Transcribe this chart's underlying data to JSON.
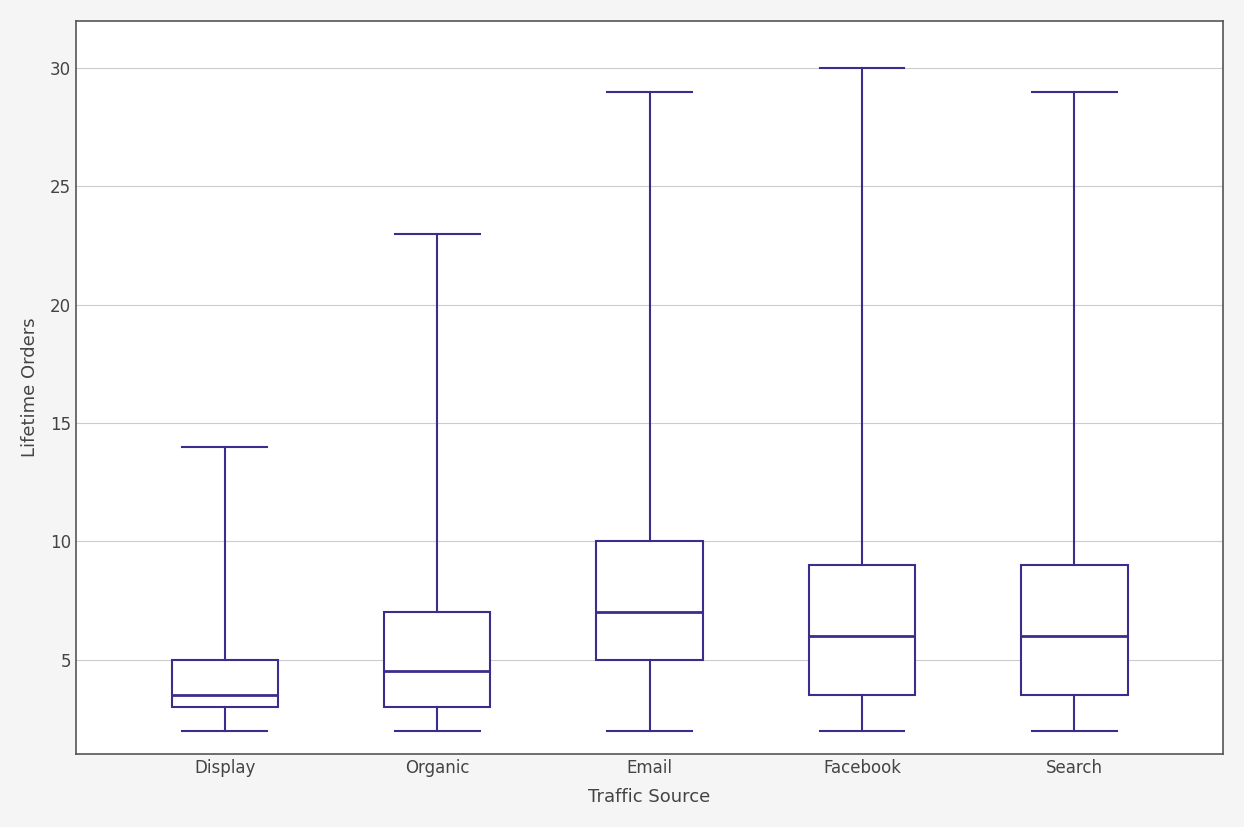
{
  "categories": [
    "Display",
    "Organic",
    "Email",
    "Facebook",
    "Search"
  ],
  "xlabel": "Traffic Source",
  "ylabel": "Lifetime Orders",
  "ylim": [
    1,
    32
  ],
  "yticks": [
    5,
    10,
    15,
    20,
    25,
    30
  ],
  "box_color": "#3d2b8e",
  "background_color": "#f5f5f5",
  "plot_bg_color": "#ffffff",
  "border_color": "#555555",
  "grid_color": "#cccccc",
  "boxes": [
    {
      "whisker_low": 2,
      "q1": 3,
      "median": 3.5,
      "q3": 5,
      "whisker_high": 14
    },
    {
      "whisker_low": 2,
      "q1": 3,
      "median": 4.5,
      "q3": 7,
      "whisker_high": 23
    },
    {
      "whisker_low": 2,
      "q1": 5,
      "median": 7,
      "q3": 10,
      "whisker_high": 29
    },
    {
      "whisker_low": 2,
      "q1": 3.5,
      "median": 6,
      "q3": 9,
      "whisker_high": 30
    },
    {
      "whisker_low": 2,
      "q1": 3.5,
      "median": 6,
      "q3": 9,
      "whisker_high": 29
    }
  ],
  "figsize": [
    12.44,
    8.27
  ],
  "dpi": 100,
  "box_width": 0.5,
  "linewidth": 1.5,
  "xlabel_fontsize": 13,
  "ylabel_fontsize": 13,
  "tick_fontsize": 12
}
